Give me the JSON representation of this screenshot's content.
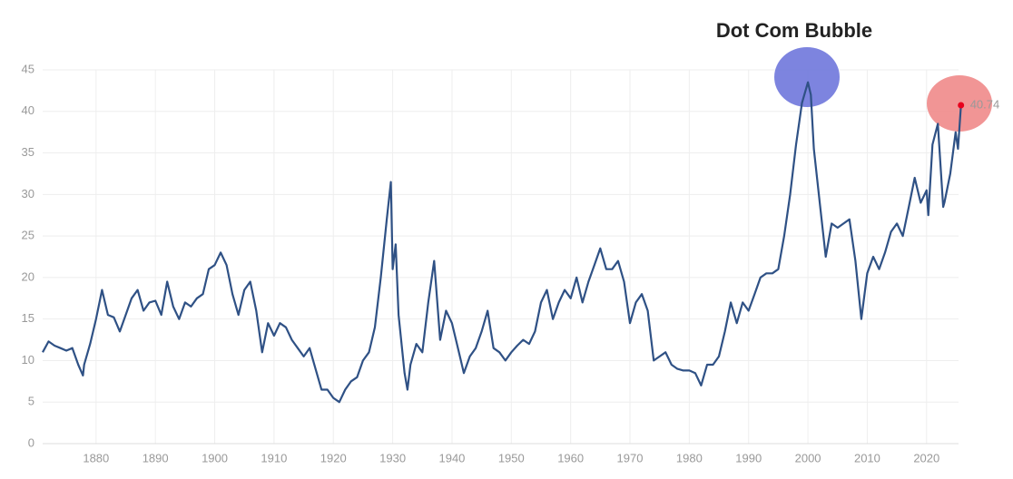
{
  "chart_data": {
    "type": "line",
    "annotation": "Dot Com Bubble",
    "x": [
      1871,
      1872,
      1873,
      1874,
      1875,
      1876,
      1877,
      1877.8,
      1878,
      1879,
      1880,
      1881,
      1882,
      1883,
      1884,
      1885,
      1886,
      1887,
      1888,
      1889,
      1890,
      1891,
      1892,
      1893,
      1894,
      1895,
      1896,
      1897,
      1898,
      1899,
      1900,
      1901,
      1902,
      1903,
      1904,
      1905,
      1906,
      1907,
      1908,
      1909,
      1910,
      1911,
      1912,
      1913,
      1914,
      1915,
      1916,
      1917,
      1918,
      1919,
      1920,
      1921,
      1922,
      1923,
      1924,
      1925,
      1926,
      1927,
      1928,
      1929,
      1929.7,
      1930,
      1930.5,
      1931,
      1932,
      1932.5,
      1933,
      1934,
      1935,
      1936,
      1937,
      1938,
      1939,
      1940,
      1941,
      1942,
      1943,
      1944,
      1945,
      1946,
      1947,
      1948,
      1949,
      1950,
      1951,
      1952,
      1953,
      1954,
      1955,
      1956,
      1957,
      1958,
      1959,
      1960,
      1961,
      1962,
      1963,
      1964,
      1965,
      1966,
      1967,
      1968,
      1969,
      1970,
      1971,
      1972,
      1973,
      1974,
      1975,
      1976,
      1977,
      1978,
      1979,
      1980,
      1981,
      1982,
      1983,
      1984,
      1985,
      1986,
      1987,
      1988,
      1989,
      1990,
      1991,
      1992,
      1993,
      1994,
      1995,
      1996,
      1997,
      1998,
      1999,
      2000,
      2000.5,
      2001,
      2002,
      2003,
      2004,
      2005,
      2006,
      2007,
      2008,
      2009,
      2010,
      2011,
      2012,
      2013,
      2014,
      2015,
      2016,
      2017,
      2018,
      2019,
      2020,
      2020.3,
      2021,
      2021.9,
      2022.8,
      2023,
      2024,
      2024.9,
      2025.3,
      2025.8
    ],
    "series": [
      {
        "color": "#2f5185",
        "values": [
          11.0,
          12.3,
          11.8,
          11.5,
          11.2,
          11.5,
          9.5,
          8.2,
          9.5,
          12.0,
          15.0,
          18.5,
          15.5,
          15.2,
          13.5,
          15.5,
          17.5,
          18.5,
          16.0,
          17.0,
          17.2,
          15.5,
          19.5,
          16.5,
          15.0,
          17.0,
          16.5,
          17.5,
          18.0,
          21.0,
          21.5,
          23.0,
          21.5,
          18.0,
          15.5,
          18.5,
          19.5,
          16.0,
          11.0,
          14.5,
          13.0,
          14.5,
          14.0,
          12.5,
          11.5,
          10.5,
          11.5,
          9.0,
          6.5,
          6.5,
          5.5,
          5.0,
          6.5,
          7.5,
          8.0,
          10.0,
          11.0,
          14.0,
          20.0,
          27.0,
          31.5,
          21.0,
          24.0,
          15.5,
          8.5,
          6.5,
          9.5,
          12.0,
          11.0,
          17.0,
          22.0,
          12.5,
          16.0,
          14.5,
          11.5,
          8.5,
          10.5,
          11.5,
          13.5,
          16.0,
          11.5,
          11.0,
          10.0,
          11.0,
          11.8,
          12.5,
          12.0,
          13.5,
          17.0,
          18.5,
          15.0,
          17.0,
          18.5,
          17.5,
          20.0,
          17.0,
          19.5,
          21.5,
          23.5,
          21.0,
          21.0,
          22.0,
          19.5,
          14.5,
          17.0,
          18.0,
          16.0,
          10.0,
          10.5,
          11.0,
          9.5,
          9.0,
          8.8,
          8.8,
          8.5,
          7.0,
          9.5,
          9.5,
          10.5,
          13.5,
          17.0,
          14.5,
          17.0,
          16.0,
          18.0,
          20.0,
          20.5,
          20.5,
          21.0,
          25.0,
          30.0,
          36.0,
          41.0,
          43.5,
          42.0,
          35.5,
          29.0,
          22.5,
          26.5,
          26.0,
          26.5,
          27.0,
          22.0,
          15.0,
          20.5,
          22.5,
          21.0,
          23.0,
          25.5,
          26.5,
          25.0,
          28.5,
          32.0,
          29.0,
          30.5,
          27.5,
          36.0,
          38.5,
          28.5,
          29.0,
          32.5,
          37.5,
          35.5,
          40.74
        ]
      }
    ],
    "highlight_color": "#e8001c",
    "xlim": [
      1871,
      2026
    ],
    "xticks": [
      1880,
      1890,
      1900,
      1910,
      1920,
      1930,
      1940,
      1950,
      1960,
      1970,
      1980,
      1990,
      2000,
      2010,
      2020
    ],
    "ylim": [
      0,
      45
    ],
    "yticks": [
      0,
      5,
      10,
      15,
      20,
      25,
      30,
      35,
      40,
      45
    ],
    "grid": true
  }
}
